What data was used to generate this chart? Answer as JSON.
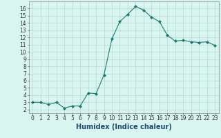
{
  "x": [
    0,
    1,
    2,
    3,
    4,
    5,
    6,
    7,
    8,
    9,
    10,
    11,
    12,
    13,
    14,
    15,
    16,
    17,
    18,
    19,
    20,
    21,
    22,
    23
  ],
  "y": [
    3.0,
    3.0,
    2.7,
    3.0,
    2.2,
    2.5,
    2.5,
    4.3,
    4.2,
    6.8,
    11.8,
    14.2,
    15.2,
    16.3,
    15.8,
    14.8,
    14.2,
    12.3,
    11.5,
    11.6,
    11.4,
    11.3,
    11.4,
    10.9
  ],
  "line_color": "#1a7a6e",
  "marker": "D",
  "marker_size": 2,
  "background_color": "#d9f5f0",
  "grid_color": "#b0d9d3",
  "xlabel": "Humidex (Indice chaleur)",
  "xlim": [
    -0.5,
    23.5
  ],
  "ylim": [
    1.5,
    17
  ],
  "yticks": [
    2,
    3,
    4,
    5,
    6,
    7,
    8,
    9,
    10,
    11,
    12,
    13,
    14,
    15,
    16
  ],
  "xticks": [
    0,
    1,
    2,
    3,
    4,
    5,
    6,
    7,
    8,
    9,
    10,
    11,
    12,
    13,
    14,
    15,
    16,
    17,
    18,
    19,
    20,
    21,
    22,
    23
  ],
  "tick_fontsize": 5.5,
  "xlabel_fontsize": 7,
  "xlabel_color": "#1a4a6e",
  "spine_color": "#888888"
}
